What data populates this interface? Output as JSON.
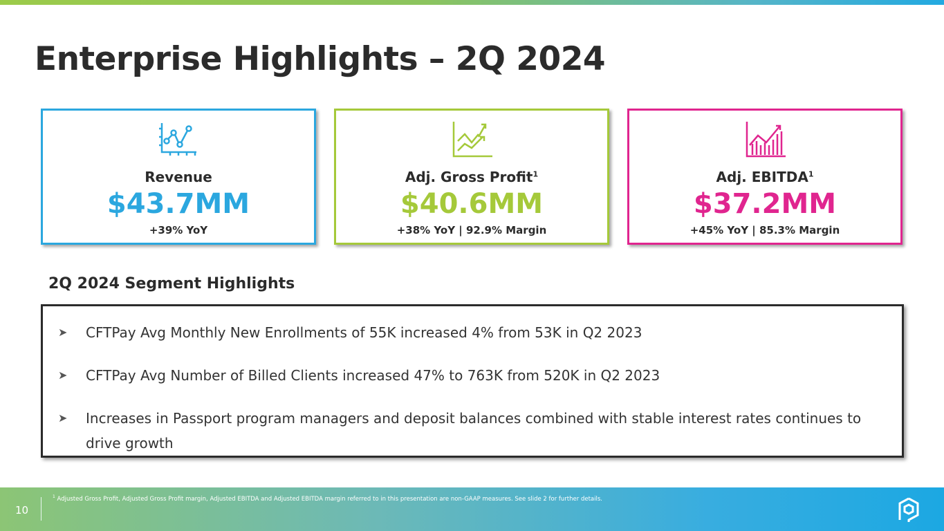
{
  "title": "Enterprise Highlights – 2Q 2024",
  "cards": [
    {
      "label": "Revenue",
      "sup": "",
      "value": "$43.7MM",
      "sub": "+39% YoY",
      "color": "#2ba7df",
      "icon": "line-chart-icon"
    },
    {
      "label": "Adj. Gross Profit",
      "sup": "1",
      "value": "$40.6MM",
      "sub": "+38% YoY | 92.9% Margin",
      "color": "#a5c93a",
      "icon": "trend-arrows-icon"
    },
    {
      "label": "Adj. EBITDA",
      "sup": "1",
      "value": "$37.2MM",
      "sub": "+45% YoY | 85.3% Margin",
      "color": "#e0258f",
      "icon": "bar-growth-icon"
    }
  ],
  "segment": {
    "title": "2Q 2024 Segment Highlights",
    "items": [
      "CFTPay Avg Monthly New Enrollments of 55K increased 4% from 53K in Q2 2023",
      "CFTPay Avg Number of Billed Clients increased 47% to 763K from 520K in Q2 2023",
      "Increases in Passport program managers and deposit balances combined with stable interest rates continues to drive growth"
    ]
  },
  "footer": {
    "page": "10",
    "footnote_sup": "1",
    "footnote": "Adjusted Gross Profit, Adjusted Gross Profit margin, Adjusted EBITDA and Adjusted EBITDA margin referred to in this presentation are non-GAAP measures. See slide 2 for further details."
  }
}
